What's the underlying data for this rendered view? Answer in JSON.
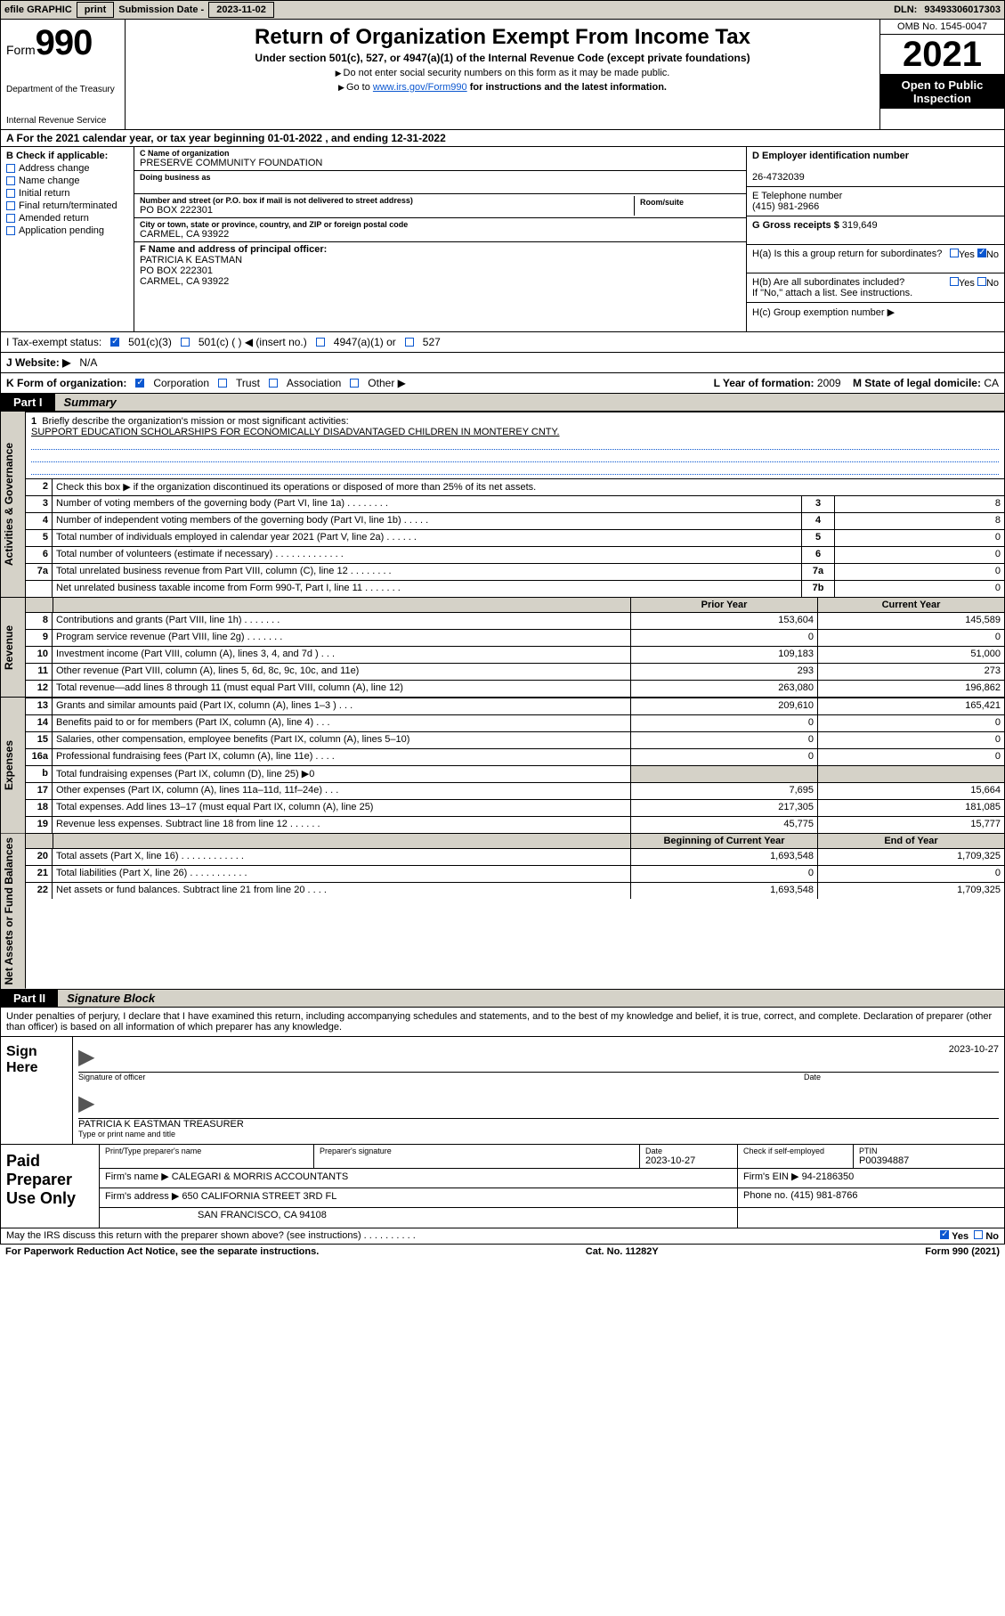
{
  "topbar": {
    "efile_label": "efile GRAPHIC",
    "print_btn": "print",
    "sub_date_label": "Submission Date -",
    "sub_date": "2023-11-02",
    "dln_label": "DLN:",
    "dln": "93493306017303"
  },
  "header": {
    "form_word": "Form",
    "form_num": "990",
    "dept": "Department of the Treasury",
    "irs": "Internal Revenue Service",
    "title": "Return of Organization Exempt From Income Tax",
    "sub_under": "Under section 501(c), 527, or 4947(a)(1) of the Internal Revenue Code (except private foundations)",
    "sub_ssn": "Do not enter social security numbers on this form as it may be made public.",
    "sub_goto_pre": "Go to ",
    "sub_goto_link": "www.irs.gov/Form990",
    "sub_goto_post": " for instructions and the latest information.",
    "omb": "OMB No. 1545-0047",
    "year": "2021",
    "open": "Open to Public Inspection"
  },
  "rowA": {
    "text": "A For the 2021 calendar year, or tax year beginning 01-01-2022    , and ending 12-31-2022"
  },
  "B": {
    "title": "B Check if applicable:",
    "opts": [
      "Address change",
      "Name change",
      "Initial return",
      "Final return/terminated",
      "Amended return",
      "Application pending"
    ]
  },
  "C": {
    "name_label": "C Name of organization",
    "name": "PRESERVE COMMUNITY FOUNDATION",
    "dba_label": "Doing business as",
    "dba": "",
    "street_label": "Number and street (or P.O. box if mail is not delivered to street address)",
    "street": "PO BOX 222301",
    "suite_label": "Room/suite",
    "city_label": "City or town, state or province, country, and ZIP or foreign postal code",
    "city": "CARMEL, CA  93922",
    "F_label": "F Name and address of principal officer:",
    "F_name": "PATRICIA K EASTMAN",
    "F_street": "PO BOX 222301",
    "F_city": "CARMEL, CA  93922"
  },
  "D": {
    "ein_label": "D Employer identification number",
    "ein": "26-4732039",
    "phone_label": "E Telephone number",
    "phone": "(415) 981-2966",
    "gross_label": "G Gross receipts $",
    "gross": "319,649",
    "Ha_label": "H(a)  Is this a group return for subordinates?",
    "Ha_no": "No",
    "Hb_label": "H(b)  Are all subordinates included?",
    "Hb_note": "If \"No,\" attach a list. See instructions.",
    "Hc_label": "H(c)  Group exemption number ▶"
  },
  "I": {
    "label": "I    Tax-exempt status:",
    "opt1": "501(c)(3)",
    "opt2": "501(c) (  ) ◀ (insert no.)",
    "opt3": "4947(a)(1) or",
    "opt4": "527"
  },
  "J": {
    "label": "J    Website: ▶",
    "val": "N/A"
  },
  "K": {
    "label": "K Form of organization:",
    "opts": [
      "Corporation",
      "Trust",
      "Association",
      "Other ▶"
    ],
    "L_label": "L Year of formation:",
    "L_val": "2009",
    "M_label": "M State of legal domicile:",
    "M_val": "CA"
  },
  "part1": {
    "title": "Part I",
    "sub": "Summary",
    "side_gov": "Activities & Governance",
    "side_rev": "Revenue",
    "side_exp": "Expenses",
    "side_net": "Net Assets or Fund Balances",
    "q1_label": "Briefly describe the organization's mission or most significant activities:",
    "q1_val": "SUPPORT EDUCATION SCHOLARSHIPS FOR ECONOMICALLY DISADVANTAGED CHILDREN IN MONTEREY CNTY.",
    "q2": "Check this box ▶     if the organization discontinued its operations or disposed of more than 25% of its net assets.",
    "rows_gov": [
      {
        "n": "3",
        "lab": "Number of voting members of the governing body (Part VI, line 1a)   .   .   .   .   .   .   .   .",
        "an": "3",
        "val": "8"
      },
      {
        "n": "4",
        "lab": "Number of independent voting members of the governing body (Part VI, line 1b)  .   .   .   .   .",
        "an": "4",
        "val": "8"
      },
      {
        "n": "5",
        "lab": "Total number of individuals employed in calendar year 2021 (Part V, line 2a)  .   .   .   .   .   .",
        "an": "5",
        "val": "0"
      },
      {
        "n": "6",
        "lab": "Total number of volunteers (estimate if necessary)   .   .   .   .   .   .   .   .   .   .   .   .   .",
        "an": "6",
        "val": "0"
      },
      {
        "n": "7a",
        "lab": "Total unrelated business revenue from Part VIII, column (C), line 12  .   .   .   .   .   .   .   .",
        "an": "7a",
        "val": "0"
      },
      {
        "n": "",
        "lab": "Net unrelated business taxable income from Form 990-T, Part I, line 11   .   .   .   .   .   .   .",
        "an": "7b",
        "val": "0"
      }
    ],
    "hdr_prior": "Prior Year",
    "hdr_curr": "Current Year",
    "rows_rev": [
      {
        "n": "8",
        "lab": "Contributions and grants (Part VIII, line 1h)   .   .   .   .   .   .   .",
        "p": "153,604",
        "c": "145,589"
      },
      {
        "n": "9",
        "lab": "Program service revenue (Part VIII, line 2g)  .   .   .   .   .   .   .",
        "p": "0",
        "c": "0"
      },
      {
        "n": "10",
        "lab": "Investment income (Part VIII, column (A), lines 3, 4, and 7d )  .   .   .",
        "p": "109,183",
        "c": "51,000"
      },
      {
        "n": "11",
        "lab": "Other revenue (Part VIII, column (A), lines 5, 6d, 8c, 9c, 10c, and 11e)",
        "p": "293",
        "c": "273"
      },
      {
        "n": "12",
        "lab": "Total revenue—add lines 8 through 11 (must equal Part VIII, column (A), line 12)",
        "p": "263,080",
        "c": "196,862"
      }
    ],
    "rows_exp": [
      {
        "n": "13",
        "lab": "Grants and similar amounts paid (Part IX, column (A), lines 1–3 )  .   .   .",
        "p": "209,610",
        "c": "165,421"
      },
      {
        "n": "14",
        "lab": "Benefits paid to or for members (Part IX, column (A), line 4)  .   .   .",
        "p": "0",
        "c": "0"
      },
      {
        "n": "15",
        "lab": "Salaries, other compensation, employee benefits (Part IX, column (A), lines 5–10)",
        "p": "0",
        "c": "0"
      },
      {
        "n": "16a",
        "lab": "Professional fundraising fees (Part IX, column (A), line 11e)  .   .   .   .",
        "p": "0",
        "c": "0"
      },
      {
        "n": "b",
        "lab": "Total fundraising expenses (Part IX, column (D), line 25) ▶0",
        "p": "",
        "c": "",
        "shade": true
      },
      {
        "n": "17",
        "lab": "Other expenses (Part IX, column (A), lines 11a–11d, 11f–24e)  .   .   .",
        "p": "7,695",
        "c": "15,664"
      },
      {
        "n": "18",
        "lab": "Total expenses. Add lines 13–17 (must equal Part IX, column (A), line 25)",
        "p": "217,305",
        "c": "181,085"
      },
      {
        "n": "19",
        "lab": "Revenue less expenses. Subtract line 18 from line 12  .   .   .   .   .   .",
        "p": "45,775",
        "c": "15,777"
      }
    ],
    "hdr_beg": "Beginning of Current Year",
    "hdr_end": "End of Year",
    "rows_net": [
      {
        "n": "20",
        "lab": "Total assets (Part X, line 16)  .   .   .   .   .   .   .   .   .   .   .   .",
        "p": "1,693,548",
        "c": "1,709,325"
      },
      {
        "n": "21",
        "lab": "Total liabilities (Part X, line 26)  .   .   .   .   .   .   .   .   .   .   .",
        "p": "0",
        "c": "0"
      },
      {
        "n": "22",
        "lab": "Net assets or fund balances. Subtract line 21 from line 20  .   .   .   .",
        "p": "1,693,548",
        "c": "1,709,325"
      }
    ]
  },
  "part2": {
    "title": "Part II",
    "sub": "Signature Block",
    "disclaimer": "Under penalties of perjury, I declare that I have examined this return, including accompanying schedules and statements, and to the best of my knowledge and belief, it is true, correct, and complete. Declaration of preparer (other than officer) is based on all information of which preparer has any knowledge.",
    "sign_here": "Sign Here",
    "sig_officer": "Signature of officer",
    "date_label": "Date",
    "sig_date": "2023-10-27",
    "officer_name": "PATRICIA K EASTMAN TREASURER",
    "type_label": "Type or print name and title"
  },
  "paid": {
    "side": "Paid Preparer Use Only",
    "h_name": "Print/Type preparer's name",
    "h_sig": "Preparer's signature",
    "h_date": "Date",
    "date": "2023-10-27",
    "h_check": "Check       if self-employed",
    "h_ptin": "PTIN",
    "ptin": "P00394887",
    "firm_name_l": "Firm's name     ▶",
    "firm_name": "CALEGARI & MORRIS ACCOUNTANTS",
    "firm_ein_l": "Firm's EIN ▶",
    "firm_ein": "94-2186350",
    "firm_addr_l": "Firm's address ▶",
    "firm_addr1": "650 CALIFORNIA STREET 3RD FL",
    "firm_addr2": "SAN FRANCISCO, CA  94108",
    "phone_l": "Phone no.",
    "phone": "(415) 981-8766"
  },
  "may": {
    "q": "May the IRS discuss this return with the preparer shown above? (see instructions)   .   .   .   .   .   .   .   .   .   .",
    "yes": "Yes",
    "no": "No"
  },
  "footer": {
    "pra": "For Paperwork Reduction Act Notice, see the separate instructions.",
    "cat": "Cat. No. 11282Y",
    "form": "Form 990 (2021)"
  }
}
